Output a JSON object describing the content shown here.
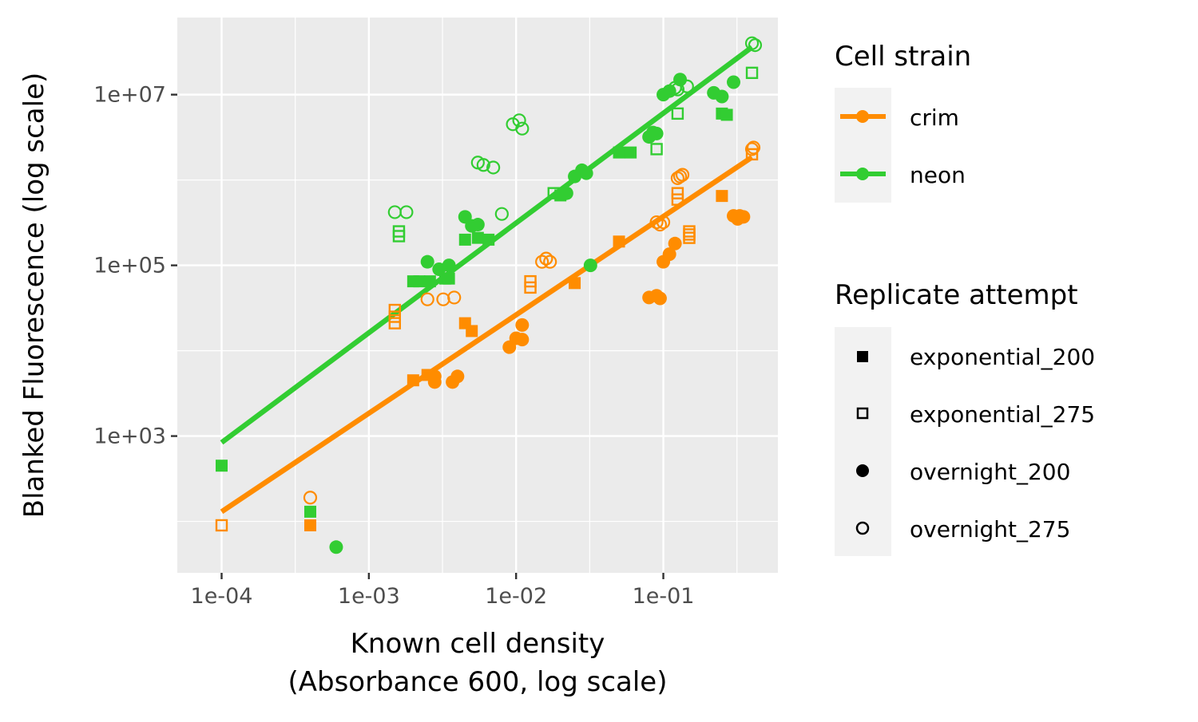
{
  "chart_data": {
    "type": "scatter",
    "x_scale": "log10",
    "y_scale": "log10",
    "xlim": [
      5e-05,
      0.6
    ],
    "ylim": [
      25,
      80000000
    ],
    "xlabel": [
      "Known cell density",
      "(Absorbance 600, log scale)"
    ],
    "ylabel": "Blanked Fluorescence (log scale)",
    "x_ticks": [
      0.0001,
      0.001,
      0.01,
      0.1
    ],
    "x_tick_labels": [
      "1e-04",
      "1e-03",
      "1e-02",
      "1e-01"
    ],
    "y_ticks": [
      1000,
      100000,
      10000000
    ],
    "y_tick_labels": [
      "1e+03",
      "1e+05",
      "1e+07"
    ],
    "grid": true,
    "legend_position": "right",
    "legends": [
      {
        "title": "Cell strain",
        "items": [
          {
            "label": "crim",
            "color": "#ff8c00"
          },
          {
            "label": "neon",
            "color": "#32cd32"
          }
        ]
      },
      {
        "title": "Replicate attempt",
        "items": [
          {
            "label": "exponential_200",
            "shape": "square-filled"
          },
          {
            "label": "exponential_275",
            "shape": "square-open"
          },
          {
            "label": "overnight_200",
            "shape": "circle-filled"
          },
          {
            "label": "overnight_275",
            "shape": "circle-open"
          }
        ]
      }
    ],
    "colors": {
      "crim": "#ff8c00",
      "neon": "#32cd32",
      "panel": "#ebebeb",
      "legend_key": "#f2f2f2"
    },
    "fit_lines": [
      {
        "strain": "crim",
        "x": [
          0.0001,
          0.4
        ],
        "y": [
          130,
          1850000
        ]
      },
      {
        "strain": "neon",
        "x": [
          0.0001,
          0.4
        ],
        "y": [
          840,
          36000000
        ]
      }
    ],
    "series": [
      {
        "strain": "crim",
        "replicate": "exponential_200",
        "points": [
          [
            0.0004,
            90
          ],
          [
            0.002,
            4500
          ],
          [
            0.0025,
            5200
          ],
          [
            0.0045,
            21000
          ],
          [
            0.005,
            17000
          ],
          [
            0.025,
            62000
          ],
          [
            0.05,
            190000
          ],
          [
            0.25,
            650000
          ]
        ]
      },
      {
        "strain": "crim",
        "replicate": "exponential_275",
        "points": [
          [
            0.0001,
            90
          ],
          [
            0.0015,
            25000
          ],
          [
            0.0015,
            30000
          ],
          [
            0.0015,
            21000
          ],
          [
            0.0125,
            55000
          ],
          [
            0.0125,
            65000
          ],
          [
            0.15,
            230000
          ],
          [
            0.15,
            250000
          ],
          [
            0.15,
            210000
          ],
          [
            0.125,
            590000
          ],
          [
            0.125,
            700000
          ],
          [
            0.4,
            2000000
          ]
        ]
      },
      {
        "strain": "crim",
        "replicate": "overnight_200",
        "points": [
          [
            0.0028,
            4300
          ],
          [
            0.0028,
            5000
          ],
          [
            0.0037,
            4300
          ],
          [
            0.004,
            5000
          ],
          [
            0.009,
            11000
          ],
          [
            0.01,
            14000
          ],
          [
            0.011,
            20000
          ],
          [
            0.011,
            13500
          ],
          [
            0.08,
            42000
          ],
          [
            0.09,
            44000
          ],
          [
            0.095,
            41000
          ],
          [
            0.1,
            110000
          ],
          [
            0.11,
            135000
          ],
          [
            0.12,
            180000
          ],
          [
            0.3,
            380000
          ],
          [
            0.32,
            350000
          ],
          [
            0.35,
            370000
          ],
          [
            0.33,
            380000
          ]
        ]
      },
      {
        "strain": "crim",
        "replicate": "overnight_275",
        "points": [
          [
            0.0004,
            190
          ],
          [
            0.0025,
            40000
          ],
          [
            0.0032,
            40000
          ],
          [
            0.0038,
            42000
          ],
          [
            0.015,
            110000
          ],
          [
            0.016,
            120000
          ],
          [
            0.017,
            110000
          ],
          [
            0.09,
            320000
          ],
          [
            0.095,
            300000
          ],
          [
            0.1,
            320000
          ],
          [
            0.125,
            1050000
          ],
          [
            0.13,
            1100000
          ],
          [
            0.135,
            1150000
          ],
          [
            0.4,
            2300000
          ],
          [
            0.41,
            2400000
          ]
        ]
      },
      {
        "strain": "neon",
        "replicate": "exponential_200",
        "points": [
          [
            0.0001,
            450
          ],
          [
            0.0004,
            130
          ],
          [
            0.002,
            65000
          ],
          [
            0.0022,
            65000
          ],
          [
            0.0026,
            65000
          ],
          [
            0.0033,
            70000
          ],
          [
            0.0035,
            70000
          ],
          [
            0.0045,
            200000
          ],
          [
            0.0055,
            210000
          ],
          [
            0.0065,
            200000
          ],
          [
            0.02,
            660000
          ],
          [
            0.05,
            2100000
          ],
          [
            0.06,
            2100000
          ],
          [
            0.25,
            6000000
          ],
          [
            0.27,
            5800000
          ]
        ]
      },
      {
        "strain": "neon",
        "replicate": "exponential_275",
        "points": [
          [
            0.0016,
            220000
          ],
          [
            0.0016,
            250000
          ],
          [
            0.018,
            700000
          ],
          [
            0.09,
            2300000
          ],
          [
            0.125,
            6000000
          ],
          [
            0.4,
            18000000
          ]
        ]
      },
      {
        "strain": "neon",
        "replicate": "overnight_200",
        "points": [
          [
            0.0006,
            50
          ],
          [
            0.0025,
            110000
          ],
          [
            0.003,
            90000
          ],
          [
            0.0035,
            100000
          ],
          [
            0.0045,
            370000
          ],
          [
            0.005,
            290000
          ],
          [
            0.0055,
            300000
          ],
          [
            0.022,
            700000
          ],
          [
            0.025,
            1100000
          ],
          [
            0.028,
            1300000
          ],
          [
            0.03,
            1200000
          ],
          [
            0.032,
            100000
          ],
          [
            0.08,
            3200000
          ],
          [
            0.085,
            3600000
          ],
          [
            0.09,
            3500000
          ],
          [
            0.1,
            10000000
          ],
          [
            0.11,
            11000000
          ],
          [
            0.13,
            15000000
          ],
          [
            0.22,
            10500000
          ],
          [
            0.25,
            9500000
          ],
          [
            0.3,
            14000000
          ]
        ]
      },
      {
        "strain": "neon",
        "replicate": "overnight_275",
        "points": [
          [
            0.0015,
            420000
          ],
          [
            0.0018,
            420000
          ],
          [
            0.0055,
            1600000
          ],
          [
            0.006,
            1500000
          ],
          [
            0.007,
            1400000
          ],
          [
            0.008,
            400000
          ],
          [
            0.0095,
            4500000
          ],
          [
            0.0105,
            5000000
          ],
          [
            0.011,
            4000000
          ],
          [
            0.12,
            12000000
          ],
          [
            0.125,
            11500000
          ],
          [
            0.145,
            12500000
          ],
          [
            0.4,
            40000000
          ],
          [
            0.42,
            38000000
          ]
        ]
      }
    ]
  }
}
